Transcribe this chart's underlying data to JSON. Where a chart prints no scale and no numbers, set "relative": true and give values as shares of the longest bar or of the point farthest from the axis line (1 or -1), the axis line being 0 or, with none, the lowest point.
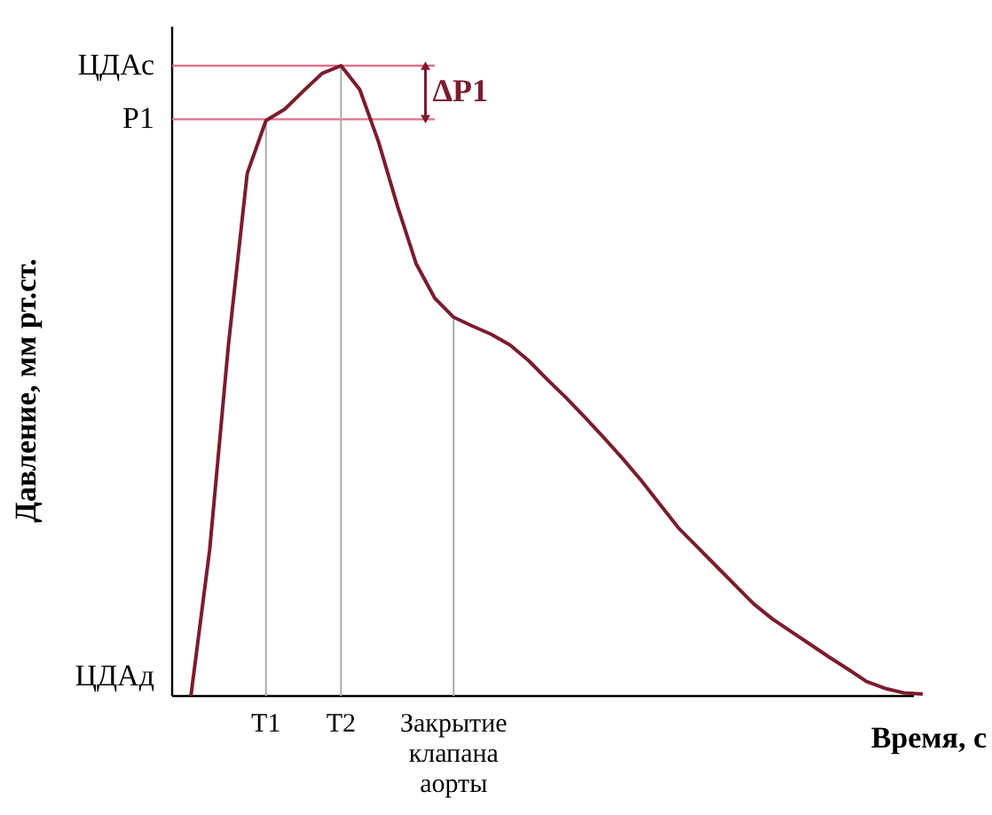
{
  "chart_data": {
    "type": "line",
    "relative": true,
    "xlabel": "Время, с",
    "ylabel": "Давление, мм рт.ст.",
    "categories": [
      null,
      null,
      null,
      null,
      "T1",
      null,
      null,
      null,
      "T2",
      null,
      null,
      null,
      null,
      null,
      "Закрытие клапана аорты",
      null,
      null,
      null,
      null,
      null,
      null,
      null,
      null,
      null,
      null,
      null,
      null,
      null,
      null,
      null,
      null,
      null,
      null,
      null,
      null,
      null,
      null,
      null,
      null,
      null
    ],
    "series": [
      {
        "color": "#7b1c2e",
        "values": [
          0,
          0.232,
          0.557,
          0.829,
          0.913,
          0.931,
          0.96,
          0.988,
          1,
          0.962,
          0.879,
          0.778,
          0.686,
          0.631,
          0.601,
          0.587,
          0.574,
          0.557,
          0.532,
          0.502,
          0.473,
          0.442,
          0.41,
          0.377,
          0.342,
          0.304,
          0.266,
          0.236,
          0.206,
          0.176,
          0.146,
          0.122,
          0.102,
          0.082,
          0.062,
          0.043,
          0.023,
          0.012,
          0.005,
          0.003
        ]
      }
    ],
    "ref_lines": [
      {
        "axis": "y",
        "value": 1,
        "label": "ЦДАс",
        "color": "#e0708a"
      },
      {
        "axis": "y",
        "value": 0.915,
        "label": "P1",
        "color": "#e0708a"
      },
      {
        "axis": "x",
        "value": "T1",
        "color": "#aaaaaa"
      },
      {
        "axis": "x",
        "value": "T2",
        "color": "#aaaaaa"
      },
      {
        "axis": "x",
        "value": "Закрытие клапана аорты",
        "color": "#aaaaaa"
      }
    ],
    "annotations": [
      "ΔP1",
      "ЦДАд"
    ]
  }
}
